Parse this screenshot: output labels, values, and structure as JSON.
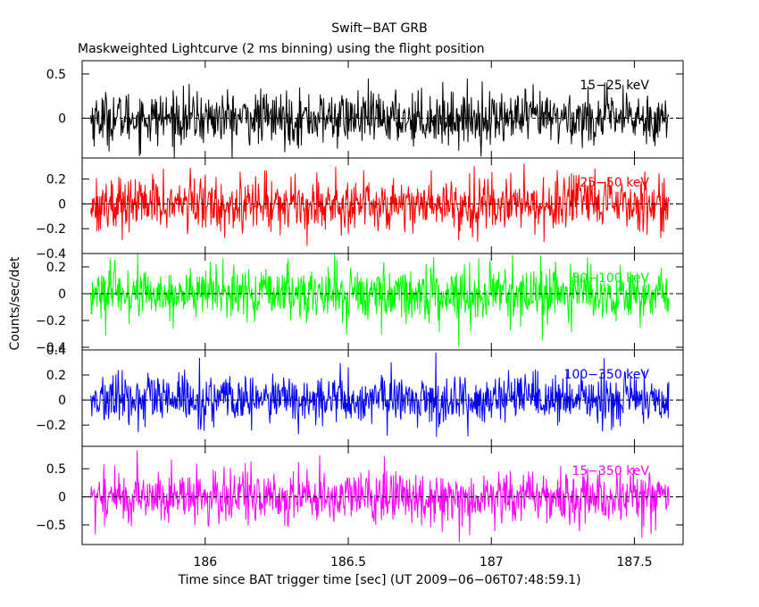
{
  "title": "Swift−BAT GRB",
  "subtitle": "Maskweighted Lightcurve (2 ms binning) using the flight position",
  "xlabel": "Time since BAT trigger time [sec] (UT 2009−06−06T07:48:59.1)",
  "ylabel": "Counts/sec/det",
  "chart_data": {
    "type": "line",
    "title": "Swift−BAT GRB",
    "subtitle": "Maskweighted Lightcurve (2 ms binning) using the flight position",
    "xlabel": "Time since BAT trigger time [sec] (UT 2009−06−06T07:48:59.1)",
    "ylabel": "Counts/sec/det",
    "xlim": [
      185.57,
      187.67
    ],
    "data_x_range": [
      185.6,
      187.62
    ],
    "bin_seconds": 0.002,
    "x_ticks": [
      186,
      186.5,
      187,
      187.5
    ],
    "x_tick_labels": [
      "186",
      "186.5",
      "187",
      "187.5"
    ],
    "grid": false,
    "panels": [
      {
        "name": "15−25 keV",
        "color": "#000000",
        "ylim": [
          -0.45,
          0.65
        ],
        "y_ticks": [
          0,
          0.5
        ],
        "y_tick_labels": [
          "0",
          "0.5"
        ],
        "noise_sigma": 0.15,
        "peak": 0.5,
        "trough": -0.45
      },
      {
        "name": "25−50 keV",
        "color": "#ff0000",
        "ylim": [
          -0.4,
          0.37
        ],
        "y_ticks": [
          -0.4,
          -0.2,
          0,
          0.2
        ],
        "y_tick_labels": [
          "−0.4",
          "−0.2",
          "0",
          "0.2"
        ],
        "noise_sigma": 0.11,
        "peak": 0.35,
        "trough": -0.38
      },
      {
        "name": "50−100 keV",
        "color": "#00ff00",
        "ylim": [
          -0.42,
          0.3
        ],
        "y_ticks": [
          -0.4,
          -0.2,
          0,
          0.2
        ],
        "y_tick_labels": [
          "−0.4",
          "−0.2",
          "0",
          "0.2"
        ],
        "noise_sigma": 0.1,
        "peak": 0.3,
        "trough": -0.4
      },
      {
        "name": "100−350 keV",
        "color": "#0000ff",
        "ylim": [
          -0.37,
          0.4
        ],
        "y_ticks": [
          -0.2,
          0,
          0.2,
          0.4
        ],
        "y_tick_labels": [
          "−0.2",
          "0",
          "0.2",
          "0.4"
        ],
        "noise_sigma": 0.1,
        "peak": 0.4,
        "trough": -0.35
      },
      {
        "name": "15−350 keV",
        "color": "#ff00ff",
        "ylim": [
          -0.85,
          0.9
        ],
        "y_ticks": [
          -0.5,
          0,
          0.5
        ],
        "y_tick_labels": [
          "−0.5",
          "0",
          "0.5"
        ],
        "noise_sigma": 0.24,
        "peak": 0.85,
        "trough": -0.8
      }
    ]
  }
}
